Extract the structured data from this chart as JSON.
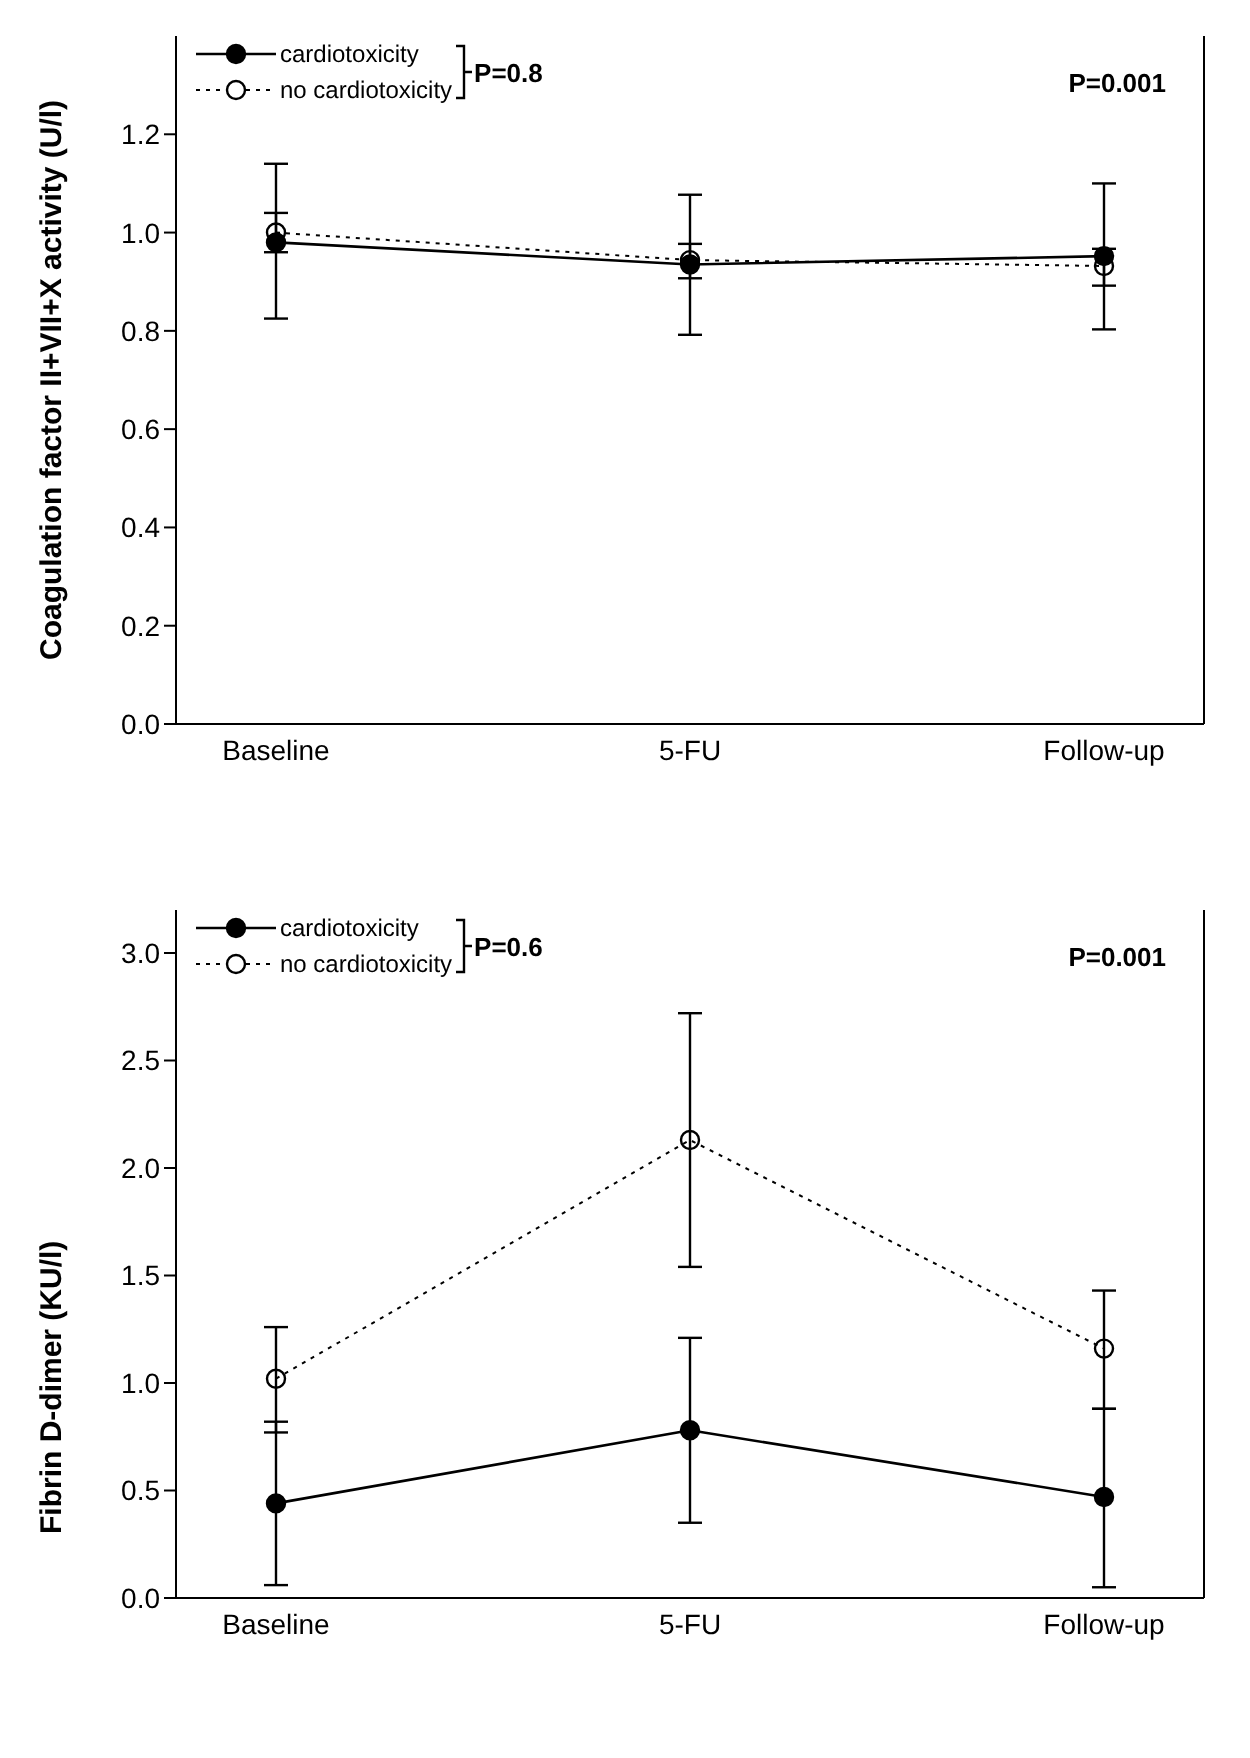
{
  "chart_data": [
    {
      "type": "line",
      "ylabel": "Coagulation factor II+VII+X activity (U/l)",
      "categories": [
        "Baseline",
        "5-FU",
        "Follow-up"
      ],
      "ylim": [
        0,
        1.4
      ],
      "yticks": [
        {
          "value": 0,
          "label": "0.0"
        },
        0.2,
        0.4,
        0.6,
        0.8,
        {
          "value": 1,
          "label": "1.0"
        },
        1.2
      ],
      "grid": false,
      "legend": "top left",
      "marker": "circle",
      "annotations": [
        "P=0.8",
        "P=0.001"
      ],
      "series": [
        {
          "name": "cardiotoxicity",
          "color": "#000000",
          "line_style": "solid",
          "values": [
            0.98,
            0.935,
            0.952
          ],
          "errors": [
            [
              0.825,
              1.14
            ],
            [
              0.792,
              1.077
            ],
            [
              0.803,
              1.1
            ]
          ]
        },
        {
          "name": "no cardiotoxicity",
          "color": "#000000",
          "line_style": "dotted",
          "values": [
            1.0,
            0.944,
            0.932
          ],
          "errors": [
            [
              0.96,
              1.04
            ],
            [
              0.907,
              0.977
            ],
            [
              0.892,
              0.967
            ]
          ]
        }
      ]
    },
    {
      "type": "line",
      "ylabel": "Fibrin D-dimer (KU/l)",
      "categories": [
        "Baseline",
        "5-FU",
        "Follow-up"
      ],
      "ylim": [
        0,
        3.2
      ],
      "yticks": [
        {
          "value": 0,
          "label": "0.0"
        },
        0.5,
        {
          "value": 1,
          "label": "1.0"
        },
        1.5,
        {
          "value": 2,
          "label": "2.0"
        },
        2.5,
        {
          "value": 3,
          "label": "3.0"
        }
      ],
      "grid": false,
      "legend": "top left",
      "marker": "circle",
      "annotations": [
        "P=0.6",
        "P=0.001"
      ],
      "series": [
        {
          "name": "cardiotoxicity",
          "color": "#000000",
          "line_style": "solid",
          "values": [
            0.44,
            0.78,
            0.47
          ],
          "errors": [
            [
              0.06,
              0.82
            ],
            [
              0.35,
              1.21
            ],
            [
              0.05,
              0.88
            ]
          ]
        },
        {
          "name": "no cardiotoxicity",
          "color": "#000000",
          "line_style": "dotted",
          "values": [
            1.02,
            2.13,
            1.16
          ],
          "errors": [
            [
              0.77,
              1.26
            ],
            [
              1.54,
              2.72
            ],
            [
              0.88,
              1.43
            ]
          ]
        }
      ]
    }
  ]
}
